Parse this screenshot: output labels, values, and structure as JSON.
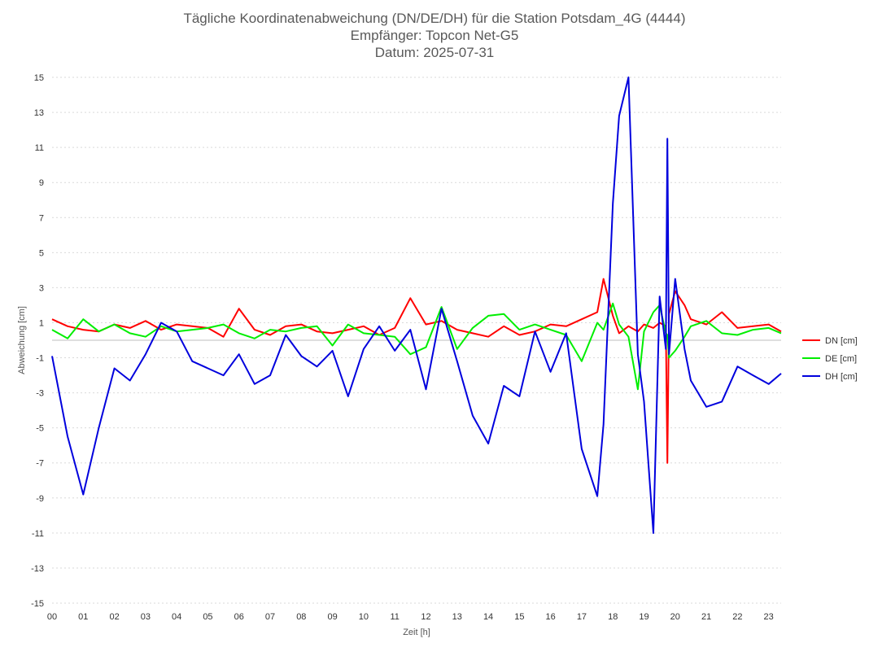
{
  "chart_data": {
    "type": "line",
    "title": [
      "Tägliche Koordinatenabweichung (DN/DE/DH) für die Station Potsdam_4G (4444)",
      "Empfänger: Topcon Net-G5",
      "Datum: 2025-07-31"
    ],
    "xlabel": "Zeit [h]",
    "ylabel": "Abweichung [cm]",
    "xlim": [
      0,
      23.4
    ],
    "ylim": [
      -15,
      15
    ],
    "x_ticks": [
      "00",
      "01",
      "02",
      "03",
      "04",
      "05",
      "06",
      "07",
      "08",
      "09",
      "10",
      "11",
      "12",
      "13",
      "14",
      "15",
      "16",
      "17",
      "18",
      "19",
      "20",
      "21",
      "22",
      "23"
    ],
    "y_ticks": [
      15,
      13,
      11,
      9,
      7,
      5,
      3,
      1,
      -1,
      -3,
      -5,
      -7,
      -9,
      -11,
      -13,
      -15
    ],
    "grid": true,
    "legend_position": "right",
    "x": [
      0,
      0.5,
      1,
      1.5,
      2,
      2.5,
      3,
      3.5,
      4,
      4.5,
      5,
      5.5,
      6,
      6.5,
      7,
      7.5,
      8,
      8.5,
      9,
      9.5,
      10,
      10.5,
      11,
      11.5,
      12,
      12.5,
      13,
      13.5,
      14,
      14.5,
      15,
      15.5,
      16,
      16.5,
      17,
      17.5,
      17.7,
      18,
      18.2,
      18.5,
      18.8,
      19,
      19.3,
      19.5,
      19.7,
      19.75,
      19.8,
      20,
      20.3,
      20.5,
      21,
      21.5,
      22,
      22.5,
      23,
      23.4
    ],
    "series": [
      {
        "name": "DN [cm]",
        "color": "#ff0000",
        "values": [
          1.2,
          0.8,
          0.6,
          0.5,
          0.9,
          0.7,
          1.1,
          0.6,
          0.9,
          0.8,
          0.7,
          0.2,
          1.8,
          0.6,
          0.3,
          0.8,
          0.9,
          0.5,
          0.4,
          0.6,
          0.8,
          0.3,
          0.7,
          2.4,
          0.9,
          1.1,
          0.6,
          0.4,
          0.2,
          0.8,
          0.3,
          0.5,
          0.9,
          0.8,
          1.2,
          1.6,
          3.5,
          1.4,
          0.4,
          0.8,
          0.5,
          0.9,
          0.7,
          1.0,
          0.8,
          -7.0,
          1.5,
          2.8,
          2.0,
          1.2,
          0.9,
          1.6,
          0.7,
          0.8,
          0.9,
          0.5
        ]
      },
      {
        "name": "DE [cm]",
        "color": "#00ee00",
        "values": [
          0.6,
          0.1,
          1.2,
          0.5,
          0.9,
          0.4,
          0.2,
          0.8,
          0.5,
          0.6,
          0.7,
          0.9,
          0.4,
          0.1,
          0.6,
          0.5,
          0.7,
          0.8,
          -0.3,
          0.9,
          0.4,
          0.3,
          0.2,
          -0.8,
          -0.4,
          1.9,
          -0.5,
          0.7,
          1.4,
          1.5,
          0.6,
          0.9,
          0.6,
          0.3,
          -1.2,
          1.0,
          0.6,
          2.1,
          0.9,
          0.2,
          -2.8,
          0.5,
          1.6,
          2.0,
          0.4,
          0.3,
          -1.0,
          -0.6,
          0.2,
          0.8,
          1.1,
          0.4,
          0.3,
          0.6,
          0.7,
          0.4
        ]
      },
      {
        "name": "DH [cm]",
        "color": "#0000dd",
        "values": [
          -0.9,
          -5.5,
          -8.8,
          -5.0,
          -1.6,
          -2.3,
          -0.8,
          1.0,
          0.5,
          -1.2,
          -1.6,
          -2.0,
          -0.8,
          -2.5,
          -2.0,
          0.3,
          -0.9,
          -1.5,
          -0.6,
          -3.2,
          -0.5,
          0.8,
          -0.6,
          0.6,
          -2.8,
          1.8,
          -1.2,
          -4.3,
          -5.9,
          -2.6,
          -3.2,
          0.5,
          -1.8,
          0.4,
          -6.2,
          -8.9,
          -4.8,
          7.8,
          12.8,
          15.0,
          -0.8,
          -3.5,
          -11.0,
          2.5,
          -0.5,
          11.5,
          -0.8,
          3.5,
          -0.5,
          -2.3,
          -3.8,
          -3.5,
          -1.5,
          -2.0,
          -2.5,
          -1.9
        ]
      }
    ]
  }
}
